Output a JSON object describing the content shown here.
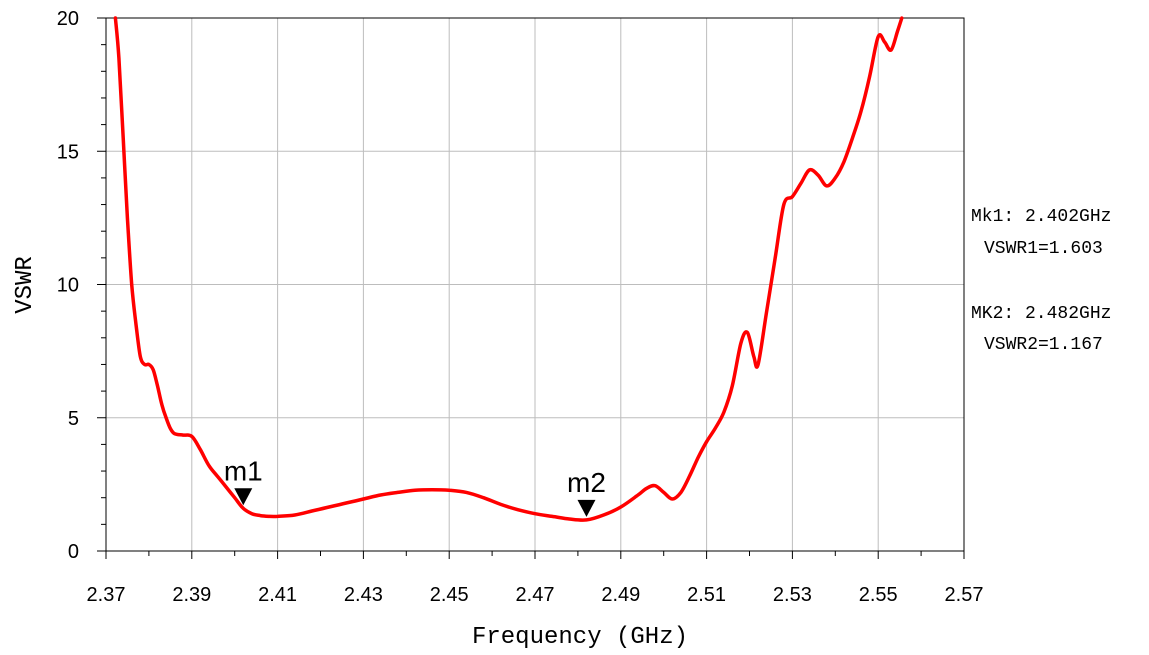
{
  "chart_data": {
    "type": "line",
    "title": "",
    "xlabel": "Frequency (GHz)",
    "ylabel": "VSWR",
    "xlim": [
      2.37,
      2.57
    ],
    "ylim": [
      0,
      20
    ],
    "x_ticks": [
      "2.37",
      "2.39",
      "2.41",
      "2.43",
      "2.45",
      "2.47",
      "2.49",
      "2.51",
      "2.53",
      "2.55",
      "2.57"
    ],
    "y_ticks": [
      "0",
      "5",
      "10",
      "15",
      "20"
    ],
    "grid": true,
    "legend": "none",
    "series": [
      {
        "color": "#ff0000",
        "x": [
          2.3722,
          2.373,
          2.374,
          2.375,
          2.376,
          2.377,
          2.378,
          2.379,
          2.38,
          2.381,
          2.382,
          2.383,
          2.384,
          2.385,
          2.386,
          2.388,
          2.39,
          2.392,
          2.394,
          2.396,
          2.398,
          2.4,
          2.402,
          2.404,
          2.406,
          2.408,
          2.41,
          2.414,
          2.418,
          2.422,
          2.426,
          2.43,
          2.434,
          2.438,
          2.442,
          2.446,
          2.45,
          2.454,
          2.458,
          2.462,
          2.466,
          2.47,
          2.474,
          2.478,
          2.482,
          2.486,
          2.49,
          2.494,
          2.496,
          2.498,
          2.5,
          2.502,
          2.504,
          2.506,
          2.508,
          2.51,
          2.512,
          2.514,
          2.516,
          2.518,
          2.5195,
          2.521,
          2.522,
          2.524,
          2.526,
          2.528,
          2.53,
          2.532,
          2.534,
          2.536,
          2.538,
          2.54,
          2.542,
          2.544,
          2.546,
          2.548,
          2.55,
          2.5515,
          2.553,
          2.5545,
          2.5555
        ],
        "y": [
          20.0,
          18.5,
          15.5,
          12.5,
          10.0,
          8.5,
          7.3,
          7.0,
          7.0,
          6.8,
          6.2,
          5.5,
          5.0,
          4.6,
          4.4,
          4.35,
          4.3,
          3.8,
          3.2,
          2.8,
          2.4,
          2.0,
          1.6,
          1.4,
          1.33,
          1.3,
          1.3,
          1.35,
          1.5,
          1.65,
          1.8,
          1.95,
          2.1,
          2.2,
          2.28,
          2.3,
          2.28,
          2.2,
          2.0,
          1.75,
          1.55,
          1.4,
          1.3,
          1.2,
          1.167,
          1.35,
          1.65,
          2.1,
          2.35,
          2.45,
          2.2,
          1.95,
          2.2,
          2.8,
          3.5,
          4.1,
          4.6,
          5.2,
          6.2,
          7.8,
          8.2,
          7.3,
          7.0,
          9.0,
          11.0,
          13.0,
          13.3,
          13.8,
          14.3,
          14.1,
          13.7,
          14.0,
          14.6,
          15.5,
          16.5,
          17.8,
          19.3,
          19.1,
          18.8,
          19.5,
          20.0
        ]
      }
    ],
    "markers": [
      {
        "label": "m1",
        "x": 2.402,
        "y": 1.603
      },
      {
        "label": "m2",
        "x": 2.482,
        "y": 1.167
      }
    ]
  },
  "readouts": {
    "mk1_freq": "Mk1: 2.402GHz",
    "mk1_vswr": "VSWR1=1.603",
    "mk2_freq": "MK2: 2.482GHz",
    "mk2_vswr": "VSWR2=1.167"
  }
}
